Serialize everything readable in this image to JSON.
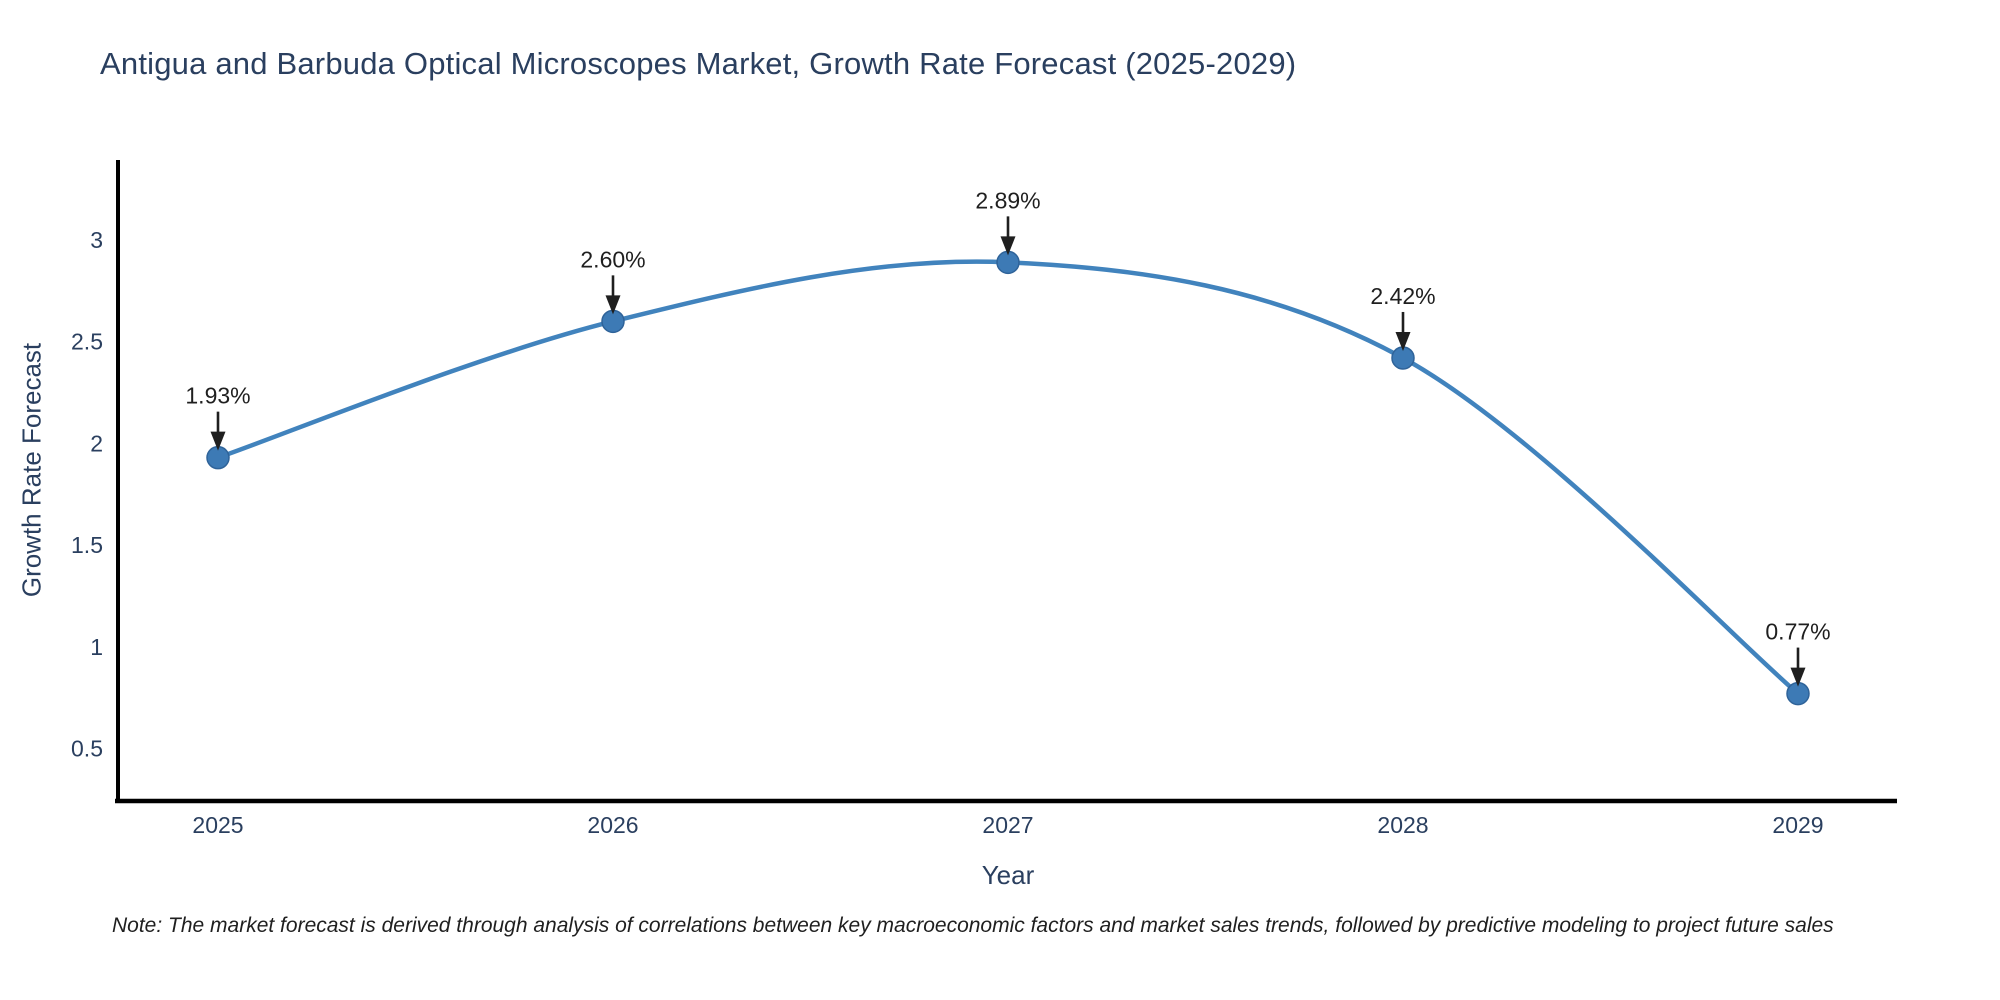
{
  "page": {
    "background": "#ffffff"
  },
  "title": "Antigua and Barbuda Optical Microscopes Market, Growth Rate Forecast (2025-2029)",
  "note": "Note: The market forecast is derived through analysis of correlations between key macroeconomic factors and market sales trends, followed by predictive modeling to project future sales",
  "chart_data": {
    "type": "line",
    "line_shape": "spline",
    "title": "Antigua and Barbuda Optical Microscopes Market, Growth Rate Forecast (2025-2029)",
    "xlabel": "Year",
    "ylabel": "Growth Rate Forecast",
    "x": [
      2025,
      2026,
      2027,
      2028,
      2029
    ],
    "x_tick_labels": [
      "2025",
      "2026",
      "2027",
      "2028",
      "2029"
    ],
    "series": [
      {
        "name": "Growth Rate Forecast",
        "values": [
          1.93,
          2.6,
          2.89,
          2.42,
          0.77
        ],
        "labels": [
          "1.93%",
          "2.60%",
          "2.89%",
          "2.42%",
          "0.77%"
        ]
      }
    ],
    "y_tick_values": [
      0.5,
      1,
      1.5,
      2,
      2.5,
      3
    ],
    "y_tick_labels": [
      "0.5",
      "1",
      "1.5",
      "2",
      "2.5",
      "3"
    ],
    "ylim": [
      0.25,
      3.4
    ],
    "grid": false,
    "legend": false,
    "annotations_have_arrows": true,
    "colors": {
      "line": "#4183bd",
      "marker": "#3d7ab5",
      "marker_edge": "#2f6399",
      "annotation_text": "#1f1f1f",
      "axis_text": "#2a3f5f",
      "title_text": "#2a3f5f",
      "axis_line": "#000000",
      "note_text": "#1f1f1f",
      "background": "#ffffff"
    }
  }
}
